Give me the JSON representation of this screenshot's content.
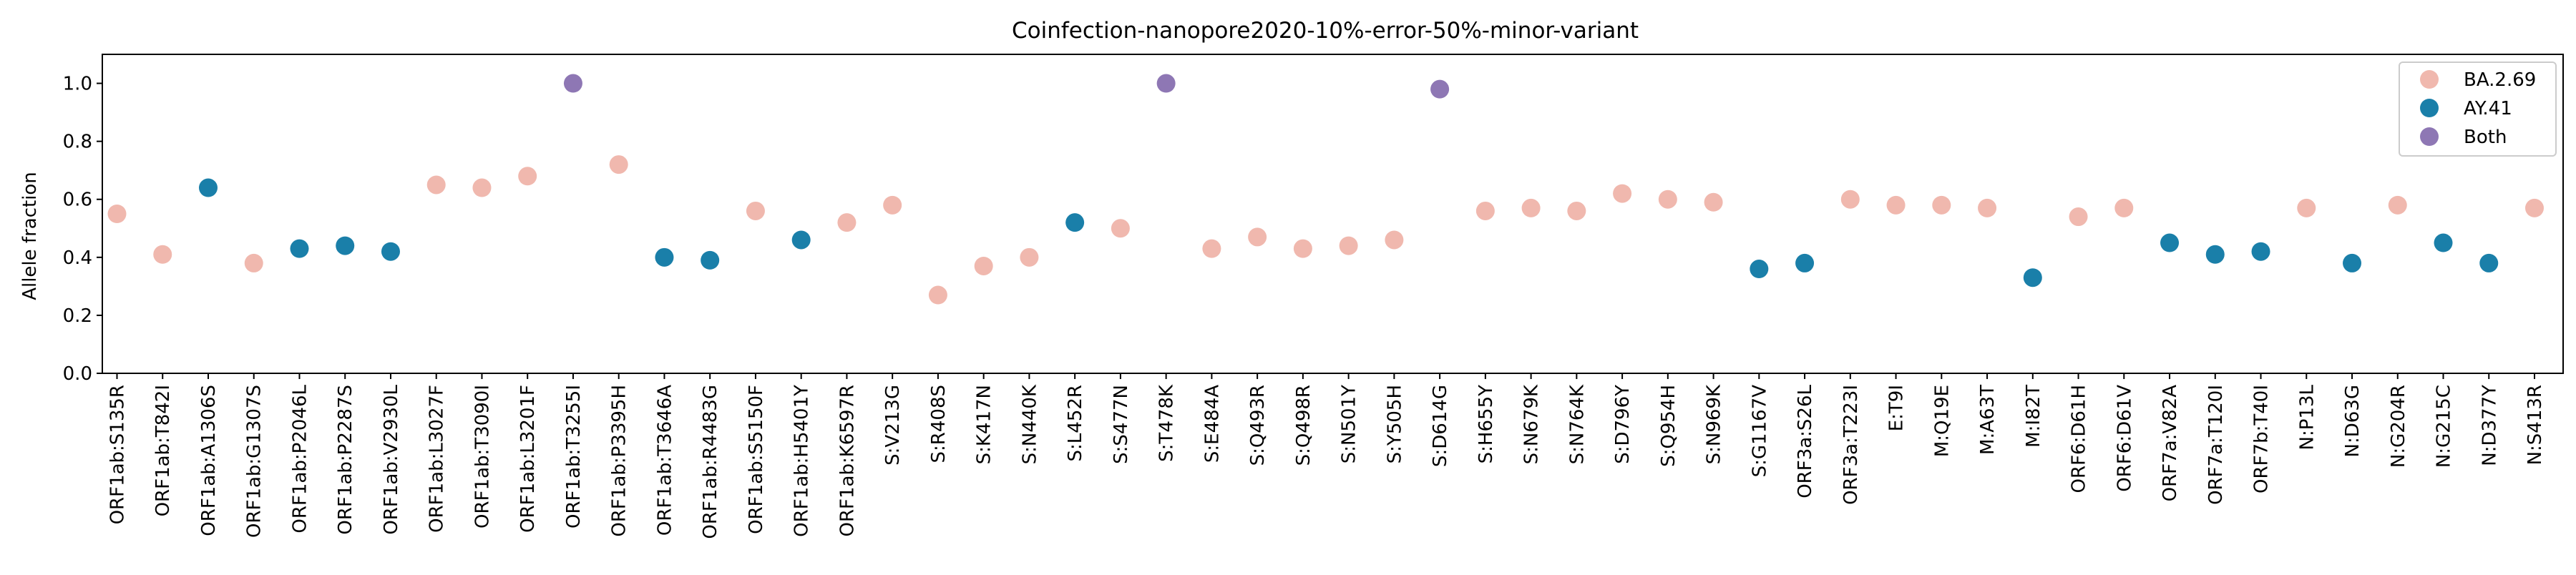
{
  "chart_data": {
    "type": "scatter",
    "title": "Coinfection-nanopore2020-10%-error-50%-minor-variant",
    "xlabel": "",
    "ylabel": "Allele fraction",
    "ylim": [
      0.0,
      1.1
    ],
    "yticks": [
      0.0,
      0.2,
      0.4,
      0.6,
      0.8,
      1.0
    ],
    "ytick_labels": [
      "0.0",
      "0.2",
      "0.4",
      "0.6",
      "0.8",
      "1.0"
    ],
    "grid": false,
    "legend_position": "top-right",
    "categories": [
      "ORF1ab:S135R",
      "ORF1ab:T842I",
      "ORF1ab:A1306S",
      "ORF1ab:G1307S",
      "ORF1ab:P2046L",
      "ORF1ab:P2287S",
      "ORF1ab:V2930L",
      "ORF1ab:L3027F",
      "ORF1ab:T3090I",
      "ORF1ab:L3201F",
      "ORF1ab:T3255I",
      "ORF1ab:P3395H",
      "ORF1ab:T3646A",
      "ORF1ab:R4483G",
      "ORF1ab:S5150F",
      "ORF1ab:H5401Y",
      "ORF1ab:K6597R",
      "S:V213G",
      "S:R408S",
      "S:K417N",
      "S:N440K",
      "S:L452R",
      "S:S477N",
      "S:T478K",
      "S:E484A",
      "S:Q493R",
      "S:Q498R",
      "S:N501Y",
      "S:Y505H",
      "S:D614G",
      "S:H655Y",
      "S:N679K",
      "S:N764K",
      "S:D796Y",
      "S:Q954H",
      "S:N969K",
      "S:G1167V",
      "ORF3a:S26L",
      "ORF3a:T223I",
      "E:T9I",
      "M:Q19E",
      "M:A63T",
      "M:I82T",
      "ORF6:D61H",
      "ORF6:D61V",
      "ORF7a:V82A",
      "ORF7a:T120I",
      "ORF7b:T40I",
      "N:P13L",
      "N:D63G",
      "N:G204R",
      "N:G215C",
      "N:D377Y",
      "N:S413R"
    ],
    "values": [
      0.55,
      0.41,
      0.64,
      0.38,
      0.43,
      0.44,
      0.42,
      0.65,
      0.64,
      0.68,
      1.0,
      0.72,
      0.4,
      0.39,
      0.56,
      0.46,
      0.52,
      0.58,
      0.27,
      0.37,
      0.4,
      0.52,
      0.5,
      1.0,
      0.43,
      0.47,
      0.43,
      0.44,
      0.46,
      0.98,
      0.56,
      0.57,
      0.56,
      0.62,
      0.6,
      0.59,
      0.36,
      0.38,
      0.6,
      0.58,
      0.58,
      0.57,
      0.33,
      0.54,
      0.57,
      0.45,
      0.41,
      0.42,
      0.57,
      0.38,
      0.58,
      0.45,
      0.38,
      0.57
    ],
    "groups": [
      "BA.2.69",
      "BA.2.69",
      "AY.41",
      "BA.2.69",
      "AY.41",
      "AY.41",
      "AY.41",
      "BA.2.69",
      "BA.2.69",
      "BA.2.69",
      "Both",
      "BA.2.69",
      "AY.41",
      "AY.41",
      "BA.2.69",
      "AY.41",
      "BA.2.69",
      "BA.2.69",
      "BA.2.69",
      "BA.2.69",
      "BA.2.69",
      "AY.41",
      "BA.2.69",
      "Both",
      "BA.2.69",
      "BA.2.69",
      "BA.2.69",
      "BA.2.69",
      "BA.2.69",
      "Both",
      "BA.2.69",
      "BA.2.69",
      "BA.2.69",
      "BA.2.69",
      "BA.2.69",
      "BA.2.69",
      "AY.41",
      "AY.41",
      "BA.2.69",
      "BA.2.69",
      "BA.2.69",
      "BA.2.69",
      "AY.41",
      "BA.2.69",
      "BA.2.69",
      "AY.41",
      "AY.41",
      "AY.41",
      "BA.2.69",
      "AY.41",
      "BA.2.69",
      "AY.41",
      "AY.41",
      "BA.2.69"
    ],
    "series": [
      {
        "name": "BA.2.69",
        "color": "#f0b8ae"
      },
      {
        "name": "AY.41",
        "color": "#1a7fa9"
      },
      {
        "name": "Both",
        "color": "#8e77b4"
      }
    ]
  }
}
